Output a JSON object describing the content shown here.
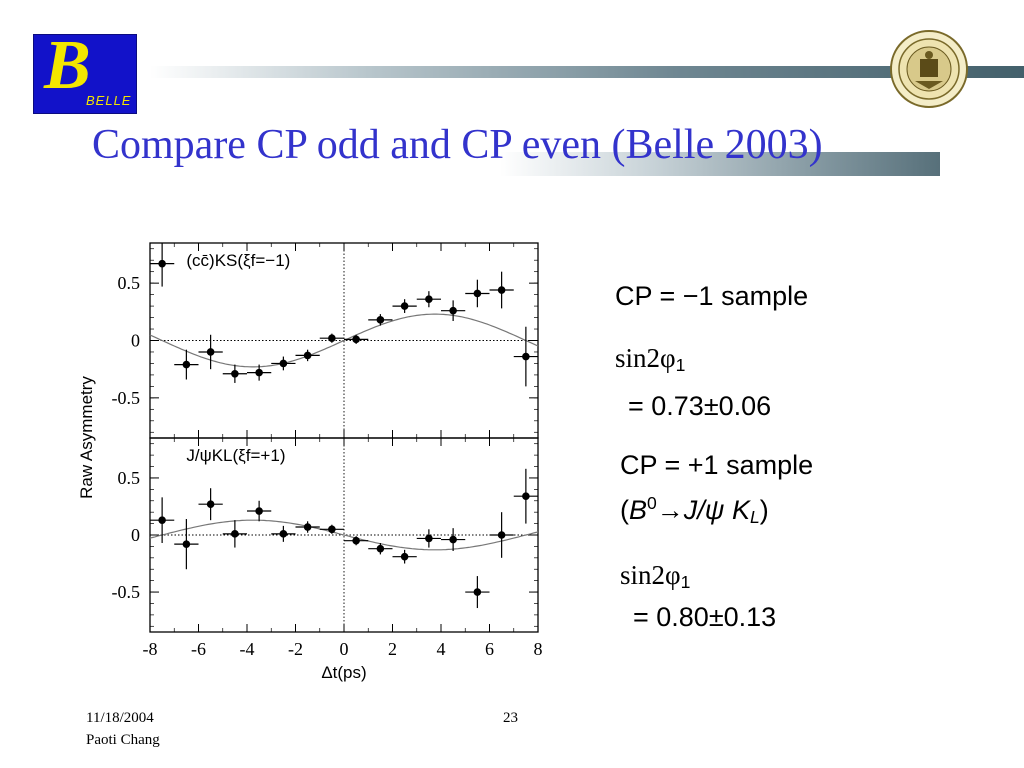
{
  "slide": {
    "title": "Compare CP odd and CP even (Belle 2003)",
    "logo_text": "BELLE",
    "logo_letter": "B",
    "date": "11/18/2004",
    "author": "Paoti Chang",
    "page_number": "23",
    "colors": {
      "title": "#3333cc",
      "logo_bg": "#1212c9",
      "logo_fg": "#f3e600"
    }
  },
  "annotations": {
    "odd_label": "CP = −1 sample",
    "odd_sin": "sin2φ",
    "odd_sub": "1",
    "odd_value": "= 0.73±0.06",
    "even_label": "CP = +1 sample",
    "even_paren_open": "(",
    "even_B": "B",
    "even_sup": "0",
    "even_arrow": "→",
    "even_J": "J/ψ ",
    "even_K": "K",
    "even_Ksub": "L",
    "even_paren_close": ")",
    "even_sin": "sin2φ",
    "even_sub": "1",
    "even_value": "= 0.80±0.13"
  },
  "chart_data": [
    {
      "type": "scatter",
      "title": "",
      "legend": "(cc̄)K_S(ξ_f=−1)",
      "xlabel": "Δt(ps)",
      "ylabel": "Raw Asymmetry",
      "xlim": [
        -8,
        8
      ],
      "ylim": [
        -0.85,
        0.85
      ],
      "xticks": [
        "-8",
        "-6",
        "-4",
        "-2",
        "0",
        "2",
        "4",
        "6",
        "8"
      ],
      "yticks": [
        "0.5",
        "0",
        "-0.5"
      ],
      "points": [
        {
          "x": -7.5,
          "y": 0.67,
          "xerr": 0.5,
          "yerr": 0.2
        },
        {
          "x": -6.5,
          "y": -0.21,
          "xerr": 0.5,
          "yerr": 0.13
        },
        {
          "x": -5.5,
          "y": -0.1,
          "xerr": 0.5,
          "yerr": 0.15
        },
        {
          "x": -4.5,
          "y": -0.29,
          "xerr": 0.5,
          "yerr": 0.08
        },
        {
          "x": -3.5,
          "y": -0.28,
          "xerr": 0.5,
          "yerr": 0.07
        },
        {
          "x": -2.5,
          "y": -0.2,
          "xerr": 0.5,
          "yerr": 0.06
        },
        {
          "x": -1.5,
          "y": -0.13,
          "xerr": 0.5,
          "yerr": 0.05
        },
        {
          "x": -0.5,
          "y": 0.02,
          "xerr": 0.5,
          "yerr": 0.04
        },
        {
          "x": 0.5,
          "y": 0.01,
          "xerr": 0.5,
          "yerr": 0.04
        },
        {
          "x": 1.5,
          "y": 0.18,
          "xerr": 0.5,
          "yerr": 0.05
        },
        {
          "x": 2.5,
          "y": 0.3,
          "xerr": 0.5,
          "yerr": 0.06
        },
        {
          "x": 3.5,
          "y": 0.36,
          "xerr": 0.5,
          "yerr": 0.07
        },
        {
          "x": 4.5,
          "y": 0.26,
          "xerr": 0.5,
          "yerr": 0.09
        },
        {
          "x": 5.5,
          "y": 0.41,
          "xerr": 0.5,
          "yerr": 0.12
        },
        {
          "x": 6.5,
          "y": 0.44,
          "xerr": 0.5,
          "yerr": 0.16
        },
        {
          "x": 7.5,
          "y": -0.14,
          "xerr": 0.5,
          "yerr": 0.26
        }
      ],
      "fit": {
        "amplitude": 0.23,
        "sign": 1,
        "period_ps": 15.0
      }
    },
    {
      "type": "scatter",
      "title": "",
      "legend": "J/ψK_L(ξ_f=+1)",
      "xlabel": "Δt(ps)",
      "ylabel": "Raw Asymmetry",
      "xlim": [
        -8,
        8
      ],
      "ylim": [
        -0.85,
        0.85
      ],
      "xticks": [
        "-8",
        "-6",
        "-4",
        "-2",
        "0",
        "2",
        "4",
        "6",
        "8"
      ],
      "yticks": [
        "0.5",
        "0",
        "-0.5"
      ],
      "points": [
        {
          "x": -7.5,
          "y": 0.13,
          "xerr": 0.5,
          "yerr": 0.2
        },
        {
          "x": -6.5,
          "y": -0.08,
          "xerr": 0.5,
          "yerr": 0.22
        },
        {
          "x": -5.5,
          "y": 0.27,
          "xerr": 0.5,
          "yerr": 0.14
        },
        {
          "x": -4.5,
          "y": 0.01,
          "xerr": 0.5,
          "yerr": 0.12
        },
        {
          "x": -3.5,
          "y": 0.21,
          "xerr": 0.5,
          "yerr": 0.09
        },
        {
          "x": -2.5,
          "y": 0.01,
          "xerr": 0.5,
          "yerr": 0.07
        },
        {
          "x": -1.5,
          "y": 0.07,
          "xerr": 0.5,
          "yerr": 0.05
        },
        {
          "x": -0.5,
          "y": 0.05,
          "xerr": 0.5,
          "yerr": 0.04
        },
        {
          "x": 0.5,
          "y": -0.05,
          "xerr": 0.5,
          "yerr": 0.04
        },
        {
          "x": 1.5,
          "y": -0.12,
          "xerr": 0.5,
          "yerr": 0.05
        },
        {
          "x": 2.5,
          "y": -0.19,
          "xerr": 0.5,
          "yerr": 0.06
        },
        {
          "x": 3.5,
          "y": -0.03,
          "xerr": 0.5,
          "yerr": 0.08
        },
        {
          "x": 4.5,
          "y": -0.04,
          "xerr": 0.5,
          "yerr": 0.1
        },
        {
          "x": 5.5,
          "y": -0.5,
          "xerr": 0.5,
          "yerr": 0.14
        },
        {
          "x": 6.5,
          "y": 0.0,
          "xerr": 0.5,
          "yerr": 0.2
        },
        {
          "x": 7.5,
          "y": 0.34,
          "xerr": 0.5,
          "yerr": 0.24
        }
      ],
      "fit": {
        "amplitude": 0.13,
        "sign": -1,
        "period_ps": 15.0
      }
    }
  ]
}
